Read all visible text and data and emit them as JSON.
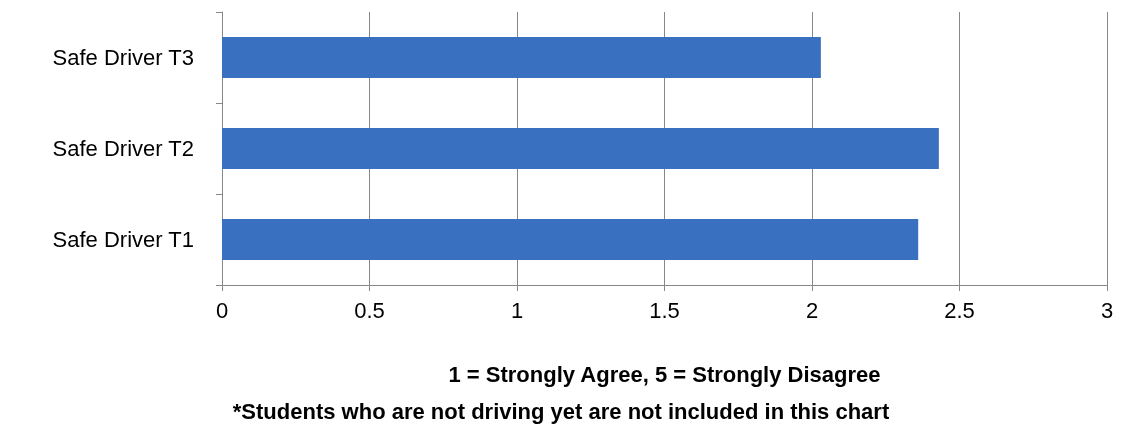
{
  "chart_data": {
    "type": "bar",
    "orientation": "horizontal",
    "categories": [
      "Safe Driver T3",
      "Safe Driver T2",
      "Safe Driver T1"
    ],
    "values": [
      2.03,
      2.43,
      2.36
    ],
    "color": "#3a70c0",
    "xlim": [
      0,
      3
    ],
    "xticks": [
      0,
      0.5,
      1,
      1.5,
      2,
      2.5,
      3
    ],
    "grid": "x",
    "xlabel": "1 = Strongly Agree, 5 = Strongly Disagree",
    "annotations": [
      "*Students who are not driving yet are not included in this chart"
    ]
  }
}
